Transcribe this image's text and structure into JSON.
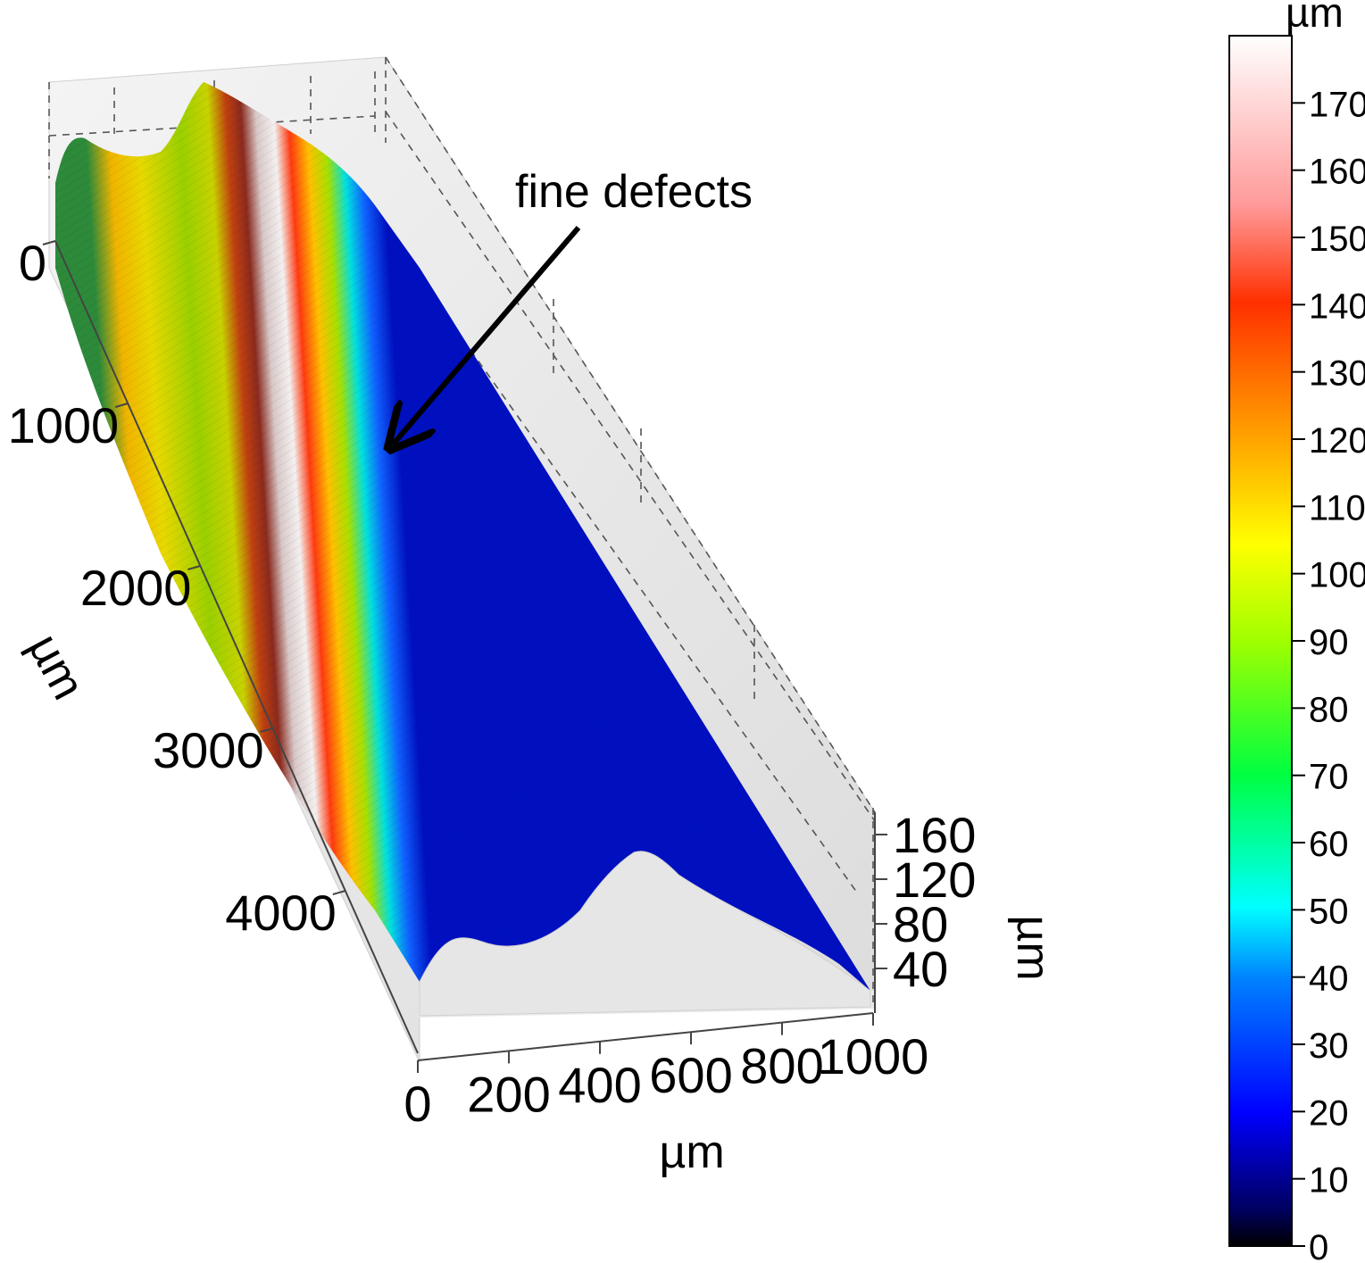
{
  "chart_data": {
    "type": "surface3d",
    "title": "",
    "annotation": "fine defects",
    "x_axis": {
      "label": "µm",
      "ticks": [
        "0",
        "200",
        "400",
        "600",
        "800",
        "1000"
      ],
      "range": [
        0,
        1000
      ]
    },
    "y_axis": {
      "label": "µm",
      "ticks": [
        "0",
        "1000",
        "2000",
        "3000",
        "4000"
      ],
      "range": [
        0,
        5000
      ]
    },
    "z_axis": {
      "label": "µm",
      "ticks": [
        "40",
        "80",
        "120",
        "160"
      ],
      "range": [
        0,
        180
      ]
    },
    "colorbar": {
      "label": "µm",
      "ticks": [
        "0",
        "10",
        "20",
        "30",
        "40",
        "50",
        "60",
        "70",
        "80",
        "90",
        "100",
        "110",
        "120",
        "130",
        "140",
        "150",
        "160",
        "170"
      ],
      "range": [
        0,
        180
      ]
    },
    "profile_x": [
      0,
      100,
      200,
      300,
      400,
      500,
      600,
      700,
      800,
      900,
      1000
    ],
    "profile_z": [
      95,
      100,
      95,
      92,
      150,
      170,
      150,
      120,
      70,
      20,
      5
    ],
    "colors": {
      "grid": "#555555",
      "wall": "#e6e6e6",
      "arrow": "#000000"
    }
  }
}
